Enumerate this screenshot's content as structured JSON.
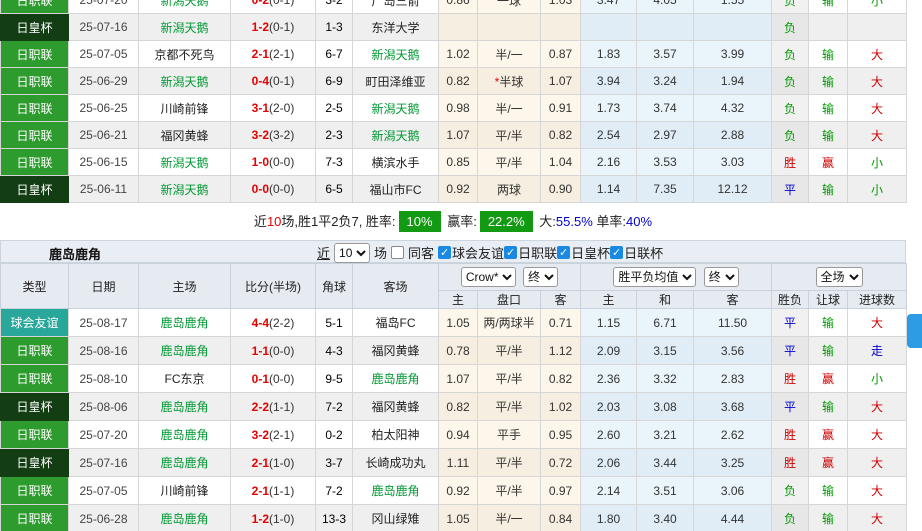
{
  "row_format": [
    "type",
    "date",
    "home",
    "home_green",
    "score",
    "half",
    "corner",
    "away",
    "away_green",
    "odds_home",
    "handicap",
    "handicap_star",
    "odds_away",
    "avg_home",
    "avg_draw",
    "avg_away",
    "result_wdl",
    "result_handicap",
    "result_goals"
  ],
  "type_colors": {
    "日职联": "#2d9b2d",
    "日皇杯": "#133d13",
    "球会友谊": "#2aa79b"
  },
  "result_colors": {
    "win_red": "#cc0000",
    "draw_blue": "#0000cc",
    "lose_green": "#009900"
  },
  "table1": {
    "team": "新潟天鹅",
    "rows": [
      [
        "日职联",
        "25-07-20",
        "新潟天鹅",
        1,
        "0-2",
        "(0-1)",
        "3-2",
        "广岛三箭",
        0,
        "0.86",
        "一球",
        0,
        "1.03",
        "3.47",
        "4.05",
        "1.55",
        "负",
        "输",
        "小"
      ],
      [
        "日皇杯",
        "25-07-16",
        "新潟天鹅",
        1,
        "1-2",
        "(0-1)",
        "1-3",
        "东洋大学",
        0,
        "",
        "",
        0,
        "",
        "",
        "",
        "",
        "负",
        "",
        ""
      ],
      [
        "日职联",
        "25-07-05",
        "京都不死鸟",
        0,
        "2-1",
        "(2-1)",
        "6-7",
        "新潟天鹅",
        1,
        "1.02",
        "半/一",
        0,
        "0.87",
        "1.83",
        "3.57",
        "3.99",
        "负",
        "输",
        "大"
      ],
      [
        "日职联",
        "25-06-29",
        "新潟天鹅",
        1,
        "0-4",
        "(0-1)",
        "6-9",
        "町田泽维亚",
        0,
        "0.82",
        "半球",
        1,
        "1.07",
        "3.94",
        "3.24",
        "1.94",
        "负",
        "输",
        "大"
      ],
      [
        "日职联",
        "25-06-25",
        "川崎前锋",
        0,
        "3-1",
        "(2-0)",
        "2-5",
        "新潟天鹅",
        1,
        "0.98",
        "半/一",
        0,
        "0.91",
        "1.73",
        "3.74",
        "4.32",
        "负",
        "输",
        "大"
      ],
      [
        "日职联",
        "25-06-21",
        "福冈黄蜂",
        0,
        "3-2",
        "(3-2)",
        "2-3",
        "新潟天鹅",
        1,
        "1.07",
        "平/半",
        0,
        "0.82",
        "2.54",
        "2.97",
        "2.88",
        "负",
        "输",
        "大"
      ],
      [
        "日职联",
        "25-06-15",
        "新潟天鹅",
        1,
        "1-0",
        "(0-0)",
        "7-3",
        "横滨水手",
        0,
        "0.85",
        "平/半",
        0,
        "1.04",
        "2.16",
        "3.53",
        "3.03",
        "胜",
        "赢",
        "小"
      ],
      [
        "日皇杯",
        "25-06-11",
        "新潟天鹅",
        1,
        "0-0",
        "(0-0)",
        "6-5",
        "福山市FC",
        0,
        "0.92",
        "两球",
        0,
        "0.90",
        "1.14",
        "7.35",
        "12.12",
        "平",
        "输",
        "小"
      ]
    ]
  },
  "summary": {
    "segments": [
      {
        "text": "近",
        "style": "plain"
      },
      {
        "text": "10",
        "style": "red"
      },
      {
        "text": "场,胜1平2负7, 胜率:",
        "style": "plain"
      },
      {
        "text": "10%",
        "style": "badge"
      },
      {
        "text": " 赢率:",
        "style": "plain"
      },
      {
        "text": "22.2%",
        "style": "badge"
      },
      {
        "text": " 大:",
        "style": "plain"
      },
      {
        "text": "55.5%",
        "style": "blue"
      },
      {
        "text": " 单率:",
        "style": "plain"
      },
      {
        "text": "40%",
        "style": "blue"
      }
    ]
  },
  "section": {
    "title": "鹿岛鹿角",
    "near_label": "近",
    "count": "10",
    "games_label": "场",
    "same_away_label": "同客",
    "same_away_checked": false,
    "filters": [
      {
        "label": "球会友谊",
        "checked": true
      },
      {
        "label": "日职联",
        "checked": true
      },
      {
        "label": "日皇杯",
        "checked": true
      },
      {
        "label": "日联杯",
        "checked": true
      }
    ]
  },
  "table2": {
    "team": "鹿岛鹿角",
    "headers": {
      "main": [
        "类型",
        "日期",
        "主场",
        "比分(半场)",
        "角球",
        "客场"
      ],
      "sub": [
        "主",
        "盘口",
        "客",
        "主",
        "和",
        "客",
        "胜负",
        "让球",
        "进球数"
      ]
    },
    "dropdowns": {
      "company": "Crow*",
      "final1": "终",
      "avg": "胜平负均值",
      "final2": "终",
      "scope": "全场"
    },
    "rows": [
      [
        "球会友谊",
        "25-08-17",
        "鹿岛鹿角",
        1,
        "4-4",
        "(2-2)",
        "5-1",
        "福岛FC",
        0,
        "1.05",
        "两/两球半",
        0,
        "0.71",
        "1.15",
        "6.71",
        "11.50",
        "平",
        "输",
        "大"
      ],
      [
        "日职联",
        "25-08-16",
        "鹿岛鹿角",
        1,
        "1-1",
        "(0-0)",
        "4-3",
        "福冈黄蜂",
        0,
        "0.78",
        "平/半",
        0,
        "1.12",
        "2.09",
        "3.15",
        "3.56",
        "平",
        "输",
        "走"
      ],
      [
        "日职联",
        "25-08-10",
        "FC东京",
        0,
        "0-1",
        "(0-0)",
        "9-5",
        "鹿岛鹿角",
        1,
        "1.07",
        "平/半",
        0,
        "0.82",
        "2.36",
        "3.32",
        "2.83",
        "胜",
        "赢",
        "小"
      ],
      [
        "日皇杯",
        "25-08-06",
        "鹿岛鹿角",
        1,
        "2-2",
        "(1-1)",
        "7-2",
        "福冈黄蜂",
        0,
        "0.82",
        "平/半",
        0,
        "1.02",
        "2.03",
        "3.08",
        "3.68",
        "平",
        "输",
        "大"
      ],
      [
        "日职联",
        "25-07-20",
        "鹿岛鹿角",
        1,
        "3-2",
        "(2-1)",
        "0-2",
        "柏太阳神",
        0,
        "0.94",
        "平手",
        0,
        "0.95",
        "2.60",
        "3.21",
        "2.62",
        "胜",
        "赢",
        "大"
      ],
      [
        "日皇杯",
        "25-07-16",
        "鹿岛鹿角",
        1,
        "2-1",
        "(1-0)",
        "3-7",
        "长崎成功丸",
        0,
        "1.11",
        "平/半",
        0,
        "0.72",
        "2.06",
        "3.44",
        "3.25",
        "胜",
        "赢",
        "大"
      ],
      [
        "日职联",
        "25-07-05",
        "川崎前锋",
        0,
        "2-1",
        "(1-1)",
        "7-2",
        "鹿岛鹿角",
        1,
        "0.92",
        "平/半",
        0,
        "0.97",
        "2.14",
        "3.51",
        "3.06",
        "负",
        "输",
        "大"
      ],
      [
        "日职联",
        "25-06-28",
        "鹿岛鹿角",
        1,
        "1-2",
        "(1-0)",
        "13-3",
        "冈山绿雉",
        0,
        "1.05",
        "半/一",
        0,
        "0.84",
        "1.80",
        "3.40",
        "4.44",
        "负",
        "输",
        "大"
      ]
    ]
  }
}
